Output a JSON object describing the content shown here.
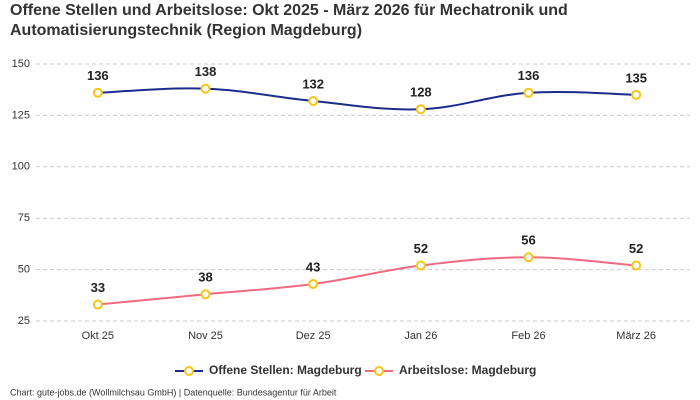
{
  "chart_data": {
    "type": "line",
    "title": "Offene Stellen und Arbeitslose: Okt 2025 - März 2026 für Mechatronik und Automatisierungstechnik (Region Magdeburg)",
    "categories": [
      "Okt 25",
      "Nov 25",
      "Dez 25",
      "Jan 26",
      "Feb 26",
      "März 26"
    ],
    "series": [
      {
        "name": "Offene Stellen: Magdeburg",
        "color": "#1b2d8c",
        "values": [
          136,
          138,
          132,
          128,
          136,
          135
        ]
      },
      {
        "name": "Arbeitslose: Magdeburg",
        "color": "#f06b80",
        "values": [
          33,
          38,
          43,
          52,
          56,
          52
        ]
      }
    ],
    "marker_color": "#f5c518",
    "ylim": [
      25,
      150
    ],
    "yticks": [
      25,
      50,
      75,
      100,
      125,
      150
    ],
    "grid": true,
    "source": "Chart: gute-jobs.de (Wollmilchsau GmbH) | Datenquelle: Bundesagentur für Arbeit"
  }
}
